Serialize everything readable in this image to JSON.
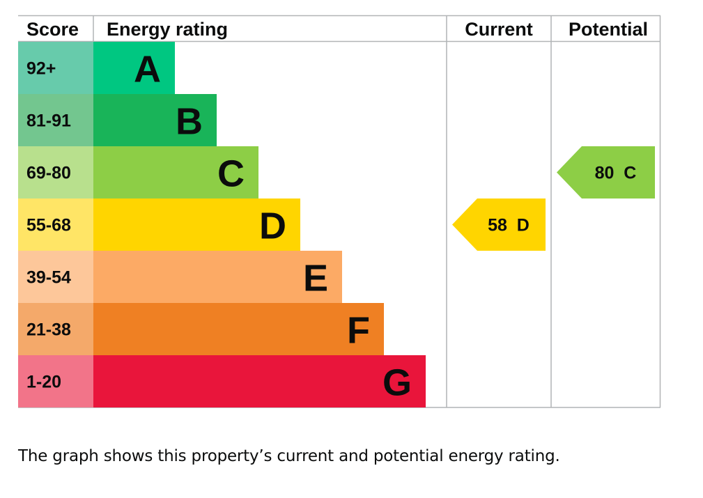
{
  "chart_data": {
    "type": "bar",
    "headers": {
      "score": "Score",
      "energy_rating": "Energy rating",
      "current": "Current",
      "potential": "Potential"
    },
    "bands": [
      {
        "score": "92+",
        "letter": "A",
        "bar_color": "#00c781",
        "score_color": "#67cbab",
        "text_color": "#0b0c0c"
      },
      {
        "score": "81-91",
        "letter": "B",
        "bar_color": "#19b459",
        "score_color": "#73c68f",
        "text_color": "#0b0c0c"
      },
      {
        "score": "69-80",
        "letter": "C",
        "bar_color": "#8dce46",
        "score_color": "#b8e08d",
        "text_color": "#0b0c0c"
      },
      {
        "score": "55-68",
        "letter": "D",
        "bar_color": "#ffd500",
        "score_color": "#ffe566",
        "text_color": "#0b0c0c"
      },
      {
        "score": "39-54",
        "letter": "E",
        "bar_color": "#fcaa65",
        "score_color": "#fdc79a",
        "text_color": "#0b0c0c"
      },
      {
        "score": "21-38",
        "letter": "F",
        "bar_color": "#ef8023",
        "score_color": "#f4a96a",
        "text_color": "#0b0c0c"
      },
      {
        "score": "1-20",
        "letter": "G",
        "bar_color": "#e9153b",
        "score_color": "#f27489",
        "text_color": "#0b0c0c"
      }
    ],
    "current": {
      "value": 58,
      "band": "D",
      "label": "58  D"
    },
    "potential": {
      "value": 80,
      "band": "C",
      "label": "80  C"
    }
  },
  "caption": "The graph shows this property’s current and potential energy rating."
}
